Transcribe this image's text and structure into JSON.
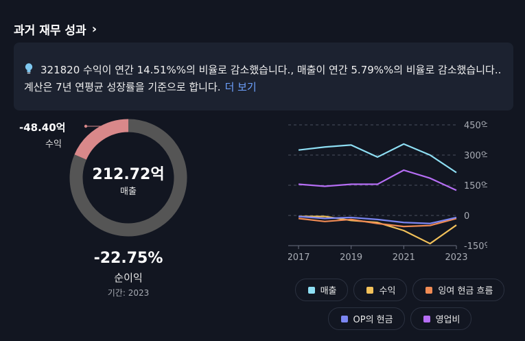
{
  "header": {
    "title": "과거 재무 성과",
    "chevron": "›"
  },
  "insight": {
    "icon": "lightbulb-icon",
    "text": "321820 수익이 연간 14.51%%의 비율로 감소했습니다., 매출이 연간 5.79%%의 비율로 감소했습니다.. 계산은 7년 연평균 성장률을 기준으로 합니다.",
    "more_label": "더 보기"
  },
  "donut": {
    "center_value": "212.72억",
    "center_label": "매출",
    "callout_value": "-48.40억",
    "callout_label": "수익",
    "net_value": "-22.75%",
    "net_label": "순이익",
    "period": "기간: 2023"
  },
  "chart_data": [
    {
      "type": "pie",
      "title": "",
      "slices": [
        {
          "label": "수익",
          "value": 48.4,
          "color": "#d9888a"
        },
        {
          "label": "매출",
          "value": 212.72,
          "color": "#555555"
        }
      ]
    },
    {
      "type": "line",
      "title": "",
      "x": [
        2017,
        2018,
        2019,
        2020,
        2021,
        2022,
        2023
      ],
      "xticks": [
        "2017",
        "2019",
        "2021",
        "2023"
      ],
      "ylim": [
        -150,
        450
      ],
      "yticks": [
        "450억",
        "300억",
        "150억",
        "0",
        "-150억"
      ],
      "ytick_values": [
        450,
        300,
        150,
        0,
        -150
      ],
      "grid": true,
      "series": [
        {
          "name": "매출",
          "color": "#8edff4",
          "values": [
            325,
            340,
            350,
            290,
            355,
            300,
            213
          ]
        },
        {
          "name": "수익",
          "color": "#f2c15a",
          "values": [
            -5,
            -5,
            -25,
            -35,
            -75,
            -140,
            -48
          ]
        },
        {
          "name": "잉여 현금 흐름",
          "color": "#f08b54",
          "values": [
            -15,
            -30,
            -20,
            -40,
            -55,
            -50,
            -15
          ]
        },
        {
          "name": "OP의 현금",
          "color": "#7b86f2",
          "values": [
            -5,
            -15,
            -10,
            -20,
            -35,
            -40,
            -10
          ]
        },
        {
          "name": "영업비",
          "color": "#b66ef5",
          "values": [
            155,
            145,
            155,
            155,
            225,
            185,
            125
          ]
        }
      ]
    }
  ],
  "legend": [
    {
      "label": "매출",
      "color": "#8edff4"
    },
    {
      "label": "수익",
      "color": "#f2c15a"
    },
    {
      "label": "잉여 현금 흐름",
      "color": "#f08b54"
    },
    {
      "label": "OP의 현금",
      "color": "#7b86f2"
    },
    {
      "label": "영업비",
      "color": "#b66ef5"
    }
  ]
}
